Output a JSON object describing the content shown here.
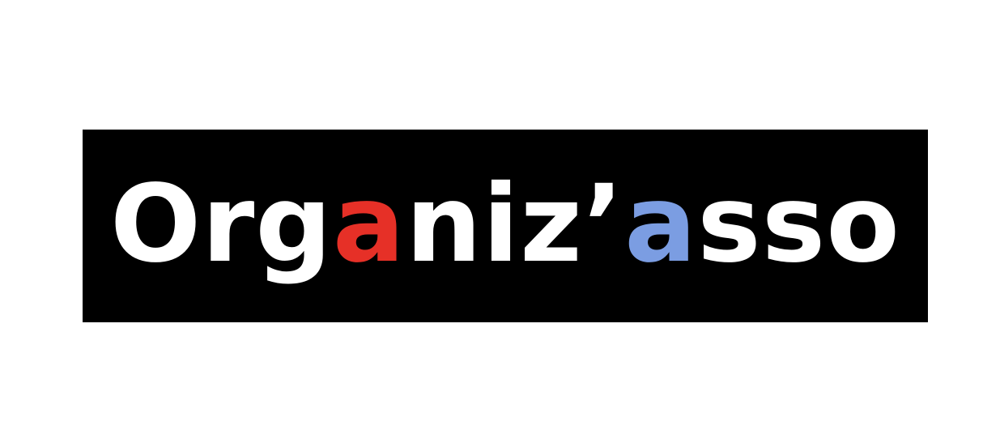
{
  "logo": {
    "background_color": "#000000",
    "text_color": "#ffffff",
    "parts": [
      {
        "text": "Org",
        "color": "#ffffff"
      },
      {
        "text": "a",
        "color": "#e63027"
      },
      {
        "text": "niz’",
        "color": "#ffffff"
      },
      {
        "text": "a",
        "color": "#7b9de2"
      },
      {
        "text": "sso",
        "color": "#ffffff"
      }
    ]
  }
}
